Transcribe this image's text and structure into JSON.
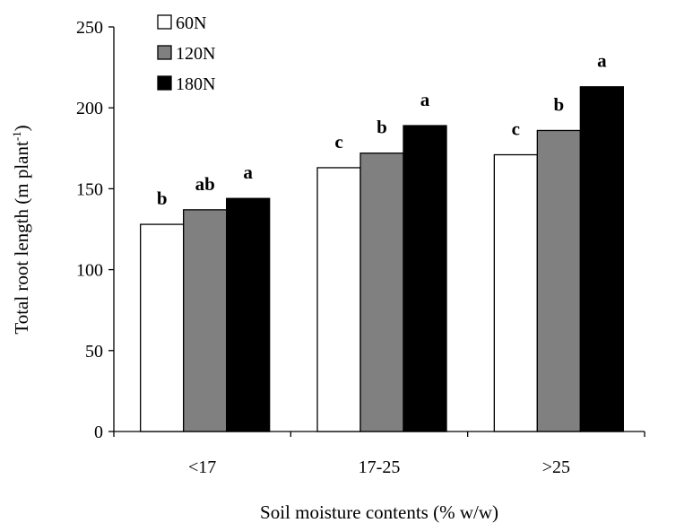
{
  "chart_data": {
    "type": "bar",
    "categories": [
      "<17",
      "17-25",
      ">25"
    ],
    "series": [
      {
        "name": "60N",
        "values": [
          128,
          163,
          171
        ],
        "letters": [
          "b",
          "c",
          "c"
        ],
        "color": "#ffffff"
      },
      {
        "name": "120N",
        "values": [
          137,
          172,
          186
        ],
        "letters": [
          "ab",
          "b",
          "b"
        ],
        "color": "#808080"
      },
      {
        "name": "180N",
        "values": [
          144,
          189,
          213
        ],
        "letters": [
          "a",
          "a",
          "a"
        ],
        "color": "#000000"
      }
    ],
    "ylim": [
      0,
      250
    ],
    "yticks": [
      0,
      50,
      100,
      150,
      200,
      250
    ],
    "ylabel_main": "Total root length (m plant",
    "ylabel_sup": "-1",
    "ylabel_close": ")",
    "xlabel": "Soil moisture contents (% w/w)",
    "grid": false,
    "legend_position": "top-left"
  }
}
